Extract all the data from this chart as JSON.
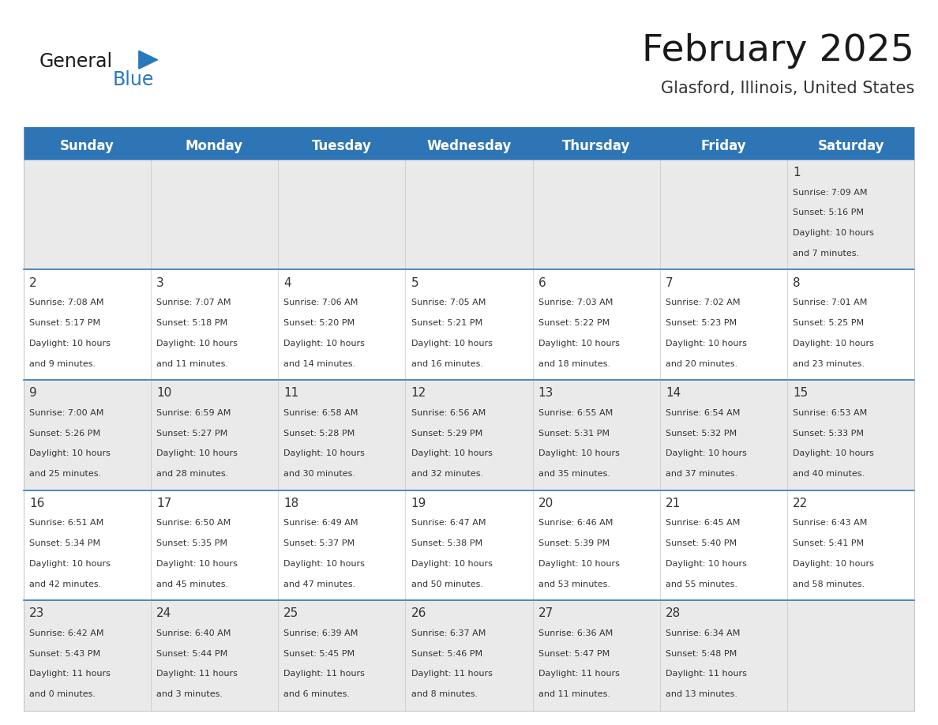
{
  "title": "February 2025",
  "subtitle": "Glasford, Illinois, United States",
  "days_of_week": [
    "Sunday",
    "Monday",
    "Tuesday",
    "Wednesday",
    "Thursday",
    "Friday",
    "Saturday"
  ],
  "header_bg": "#2E75B6",
  "header_text": "#FFFFFF",
  "cell_bg_light": "#EAEAEA",
  "cell_bg_white": "#FFFFFF",
  "cell_border_color": "#2E75B6",
  "day_num_color": "#333333",
  "text_color": "#333333",
  "title_color": "#1a1a1a",
  "subtitle_color": "#333333",
  "logo_general_color": "#1a1a1a",
  "logo_blue_color": "#2878BE",
  "calendar_data": [
    {
      "day": 1,
      "col": 6,
      "row": 0,
      "sunrise": "7:09 AM",
      "sunset": "5:16 PM",
      "daylight_h": "10",
      "daylight_m": "7"
    },
    {
      "day": 2,
      "col": 0,
      "row": 1,
      "sunrise": "7:08 AM",
      "sunset": "5:17 PM",
      "daylight_h": "10",
      "daylight_m": "9"
    },
    {
      "day": 3,
      "col": 1,
      "row": 1,
      "sunrise": "7:07 AM",
      "sunset": "5:18 PM",
      "daylight_h": "10",
      "daylight_m": "11"
    },
    {
      "day": 4,
      "col": 2,
      "row": 1,
      "sunrise": "7:06 AM",
      "sunset": "5:20 PM",
      "daylight_h": "10",
      "daylight_m": "14"
    },
    {
      "day": 5,
      "col": 3,
      "row": 1,
      "sunrise": "7:05 AM",
      "sunset": "5:21 PM",
      "daylight_h": "10",
      "daylight_m": "16"
    },
    {
      "day": 6,
      "col": 4,
      "row": 1,
      "sunrise": "7:03 AM",
      "sunset": "5:22 PM",
      "daylight_h": "10",
      "daylight_m": "18"
    },
    {
      "day": 7,
      "col": 5,
      "row": 1,
      "sunrise": "7:02 AM",
      "sunset": "5:23 PM",
      "daylight_h": "10",
      "daylight_m": "20"
    },
    {
      "day": 8,
      "col": 6,
      "row": 1,
      "sunrise": "7:01 AM",
      "sunset": "5:25 PM",
      "daylight_h": "10",
      "daylight_m": "23"
    },
    {
      "day": 9,
      "col": 0,
      "row": 2,
      "sunrise": "7:00 AM",
      "sunset": "5:26 PM",
      "daylight_h": "10",
      "daylight_m": "25"
    },
    {
      "day": 10,
      "col": 1,
      "row": 2,
      "sunrise": "6:59 AM",
      "sunset": "5:27 PM",
      "daylight_h": "10",
      "daylight_m": "28"
    },
    {
      "day": 11,
      "col": 2,
      "row": 2,
      "sunrise": "6:58 AM",
      "sunset": "5:28 PM",
      "daylight_h": "10",
      "daylight_m": "30"
    },
    {
      "day": 12,
      "col": 3,
      "row": 2,
      "sunrise": "6:56 AM",
      "sunset": "5:29 PM",
      "daylight_h": "10",
      "daylight_m": "32"
    },
    {
      "day": 13,
      "col": 4,
      "row": 2,
      "sunrise": "6:55 AM",
      "sunset": "5:31 PM",
      "daylight_h": "10",
      "daylight_m": "35"
    },
    {
      "day": 14,
      "col": 5,
      "row": 2,
      "sunrise": "6:54 AM",
      "sunset": "5:32 PM",
      "daylight_h": "10",
      "daylight_m": "37"
    },
    {
      "day": 15,
      "col": 6,
      "row": 2,
      "sunrise": "6:53 AM",
      "sunset": "5:33 PM",
      "daylight_h": "10",
      "daylight_m": "40"
    },
    {
      "day": 16,
      "col": 0,
      "row": 3,
      "sunrise": "6:51 AM",
      "sunset": "5:34 PM",
      "daylight_h": "10",
      "daylight_m": "42"
    },
    {
      "day": 17,
      "col": 1,
      "row": 3,
      "sunrise": "6:50 AM",
      "sunset": "5:35 PM",
      "daylight_h": "10",
      "daylight_m": "45"
    },
    {
      "day": 18,
      "col": 2,
      "row": 3,
      "sunrise": "6:49 AM",
      "sunset": "5:37 PM",
      "daylight_h": "10",
      "daylight_m": "47"
    },
    {
      "day": 19,
      "col": 3,
      "row": 3,
      "sunrise": "6:47 AM",
      "sunset": "5:38 PM",
      "daylight_h": "10",
      "daylight_m": "50"
    },
    {
      "day": 20,
      "col": 4,
      "row": 3,
      "sunrise": "6:46 AM",
      "sunset": "5:39 PM",
      "daylight_h": "10",
      "daylight_m": "53"
    },
    {
      "day": 21,
      "col": 5,
      "row": 3,
      "sunrise": "6:45 AM",
      "sunset": "5:40 PM",
      "daylight_h": "10",
      "daylight_m": "55"
    },
    {
      "day": 22,
      "col": 6,
      "row": 3,
      "sunrise": "6:43 AM",
      "sunset": "5:41 PM",
      "daylight_h": "10",
      "daylight_m": "58"
    },
    {
      "day": 23,
      "col": 0,
      "row": 4,
      "sunrise": "6:42 AM",
      "sunset": "5:43 PM",
      "daylight_h": "11",
      "daylight_m": "0"
    },
    {
      "day": 24,
      "col": 1,
      "row": 4,
      "sunrise": "6:40 AM",
      "sunset": "5:44 PM",
      "daylight_h": "11",
      "daylight_m": "3"
    },
    {
      "day": 25,
      "col": 2,
      "row": 4,
      "sunrise": "6:39 AM",
      "sunset": "5:45 PM",
      "daylight_h": "11",
      "daylight_m": "6"
    },
    {
      "day": 26,
      "col": 3,
      "row": 4,
      "sunrise": "6:37 AM",
      "sunset": "5:46 PM",
      "daylight_h": "11",
      "daylight_m": "8"
    },
    {
      "day": 27,
      "col": 4,
      "row": 4,
      "sunrise": "6:36 AM",
      "sunset": "5:47 PM",
      "daylight_h": "11",
      "daylight_m": "11"
    },
    {
      "day": 28,
      "col": 5,
      "row": 4,
      "sunrise": "6:34 AM",
      "sunset": "5:48 PM",
      "daylight_h": "11",
      "daylight_m": "13"
    }
  ]
}
